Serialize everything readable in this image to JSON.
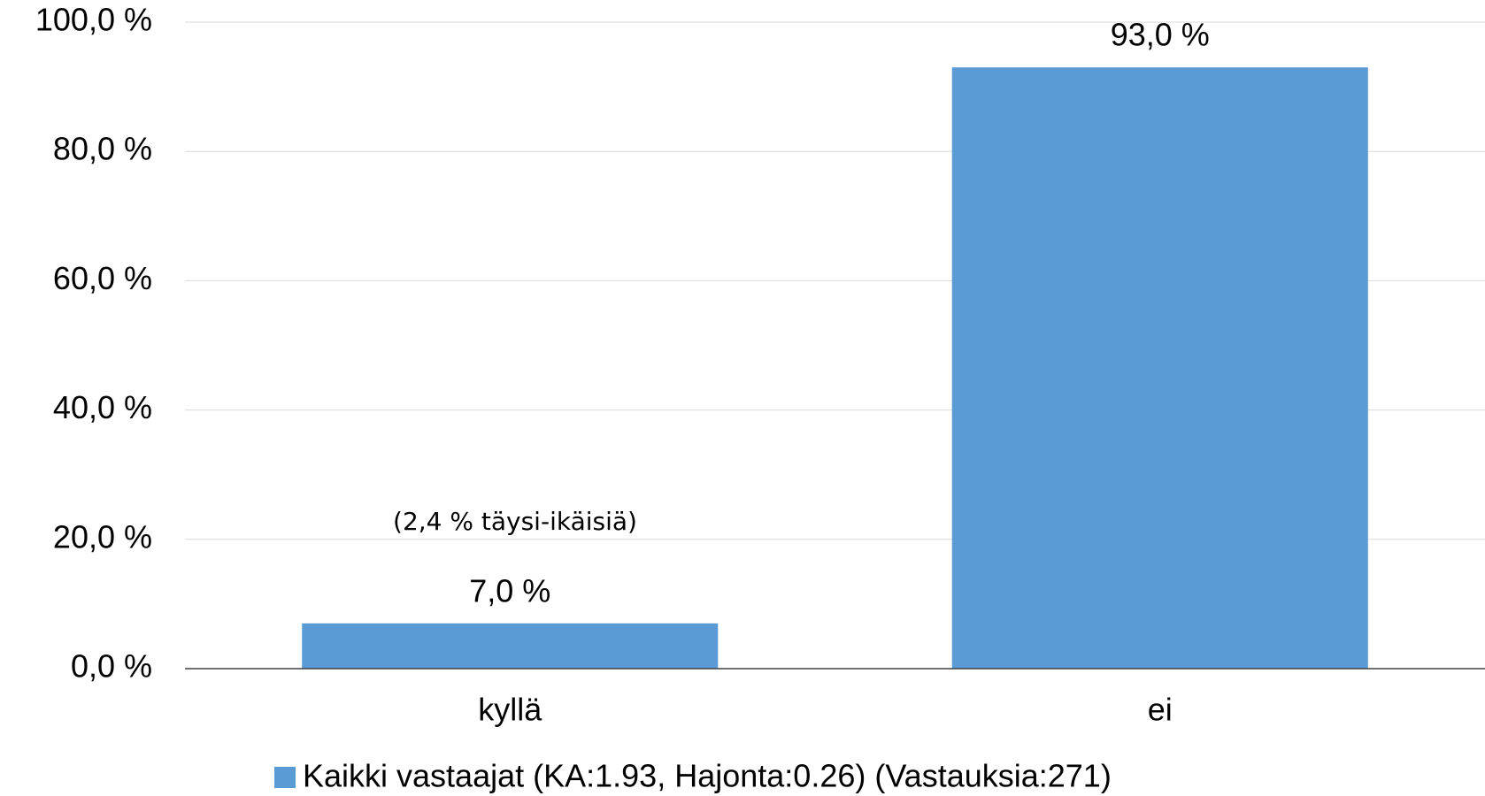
{
  "chart_data": {
    "type": "bar",
    "categories": [
      "kyllä",
      "ei"
    ],
    "series": [
      {
        "name": "Kaikki vastaajat (KA:1.93, Hajonta:0.26) (Vastauksia:271)",
        "color": "#5b9bd5",
        "values": [
          7,
          93
        ],
        "value_labels": [
          "7,0 %",
          "93,0 %"
        ]
      }
    ],
    "annotation": "(2,4 % täysi-ikäisiä)",
    "ylim": [
      0,
      100
    ],
    "yticks": [
      {
        "value": 0,
        "label": "0,0 %"
      },
      {
        "value": 20,
        "label": "20,0 %"
      },
      {
        "value": 40,
        "label": "40,0 %"
      },
      {
        "value": 60,
        "label": "60,0 %"
      },
      {
        "value": 80,
        "label": "80,0 %"
      },
      {
        "value": 100,
        "label": "100,0 %"
      }
    ],
    "grid": true,
    "legend": "bottom"
  }
}
